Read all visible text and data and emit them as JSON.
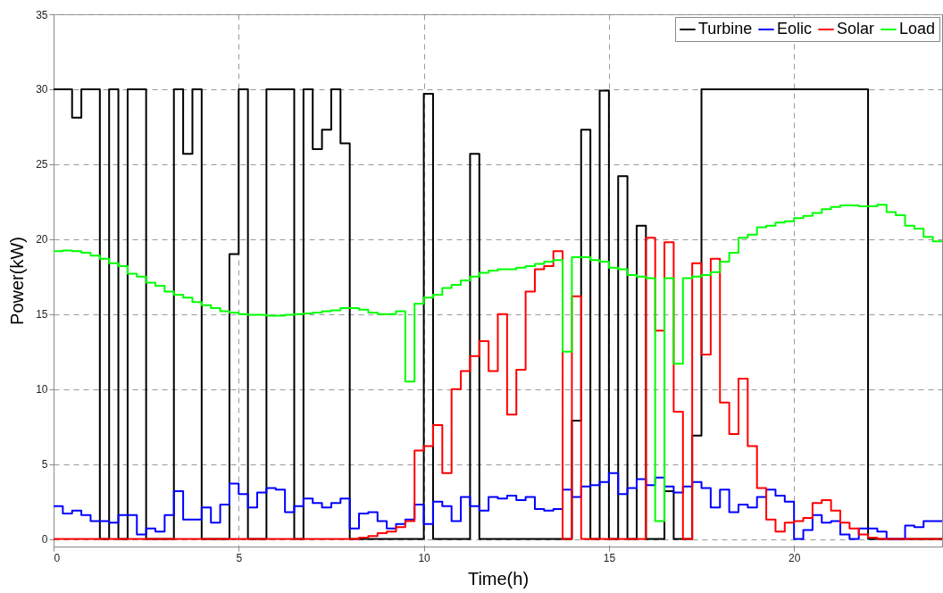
{
  "chart_data": {
    "type": "step",
    "xlabel": "Time(h)",
    "ylabel": "Power(kW)",
    "x": [
      0,
      0.25,
      0.5,
      0.75,
      1,
      1.25,
      1.5,
      1.75,
      2,
      2.25,
      2.5,
      2.75,
      3,
      3.25,
      3.5,
      3.75,
      4,
      4.25,
      4.5,
      4.75,
      5,
      5.25,
      5.5,
      5.75,
      6,
      6.25,
      6.5,
      6.75,
      7,
      7.25,
      7.5,
      7.75,
      8,
      8.25,
      8.5,
      8.75,
      9,
      9.25,
      9.5,
      9.75,
      10,
      10.25,
      10.5,
      10.75,
      11,
      11.25,
      11.5,
      11.75,
      12,
      12.25,
      12.5,
      12.75,
      13,
      13.25,
      13.5,
      13.75,
      14,
      14.25,
      14.5,
      14.75,
      15,
      15.25,
      15.5,
      15.75,
      16,
      16.25,
      16.5,
      16.75,
      17,
      17.25,
      17.5,
      17.75,
      18,
      18.25,
      18.5,
      18.75,
      19,
      19.25,
      19.5,
      19.75,
      20,
      20.25,
      20.5,
      20.75,
      21,
      21.25,
      21.5,
      21.75,
      22,
      22.25,
      22.5,
      22.75,
      23,
      23.25,
      23.5,
      23.75,
      24
    ],
    "series": [
      {
        "name": "Turbine",
        "color": "#000000",
        "values": [
          30,
          30,
          28.1,
          30,
          30,
          0,
          30,
          0,
          30,
          30,
          0,
          0,
          0,
          30,
          25.7,
          30,
          0,
          0,
          0,
          19,
          30,
          0,
          0,
          30,
          30,
          30,
          0,
          30,
          26,
          27.3,
          30,
          26.4,
          0,
          0,
          0,
          0,
          0,
          0,
          0,
          0,
          29.7,
          0,
          0,
          0,
          0,
          25.7,
          0,
          0,
          0,
          0,
          0,
          0,
          0,
          0,
          0,
          0,
          7.9,
          27.3,
          0,
          29.9,
          0,
          24.2,
          0,
          20.9,
          0,
          0,
          3.2,
          0,
          0,
          6.9,
          30,
          30,
          30,
          30,
          30,
          30,
          30,
          30,
          30,
          30,
          30,
          30,
          30,
          30,
          30,
          30,
          30,
          30,
          0,
          0,
          0,
          0,
          0,
          0,
          0,
          0,
          0
        ]
      },
      {
        "name": "Eolic",
        "color": "#0000ff",
        "values": [
          2.2,
          1.7,
          1.9,
          1.6,
          1.2,
          1.2,
          1.1,
          1.6,
          1.6,
          0.3,
          0.7,
          0.5,
          1.6,
          3.2,
          1.3,
          1.3,
          2.1,
          1.1,
          2.3,
          3.7,
          3.0,
          2.1,
          3.1,
          3.4,
          3.3,
          1.8,
          2.2,
          2.7,
          2.4,
          2.1,
          2.4,
          2.7,
          0.7,
          1.7,
          1.8,
          1.2,
          0.7,
          1.0,
          1.3,
          2.3,
          1.0,
          2.5,
          2.2,
          1.2,
          2.8,
          2.2,
          1.9,
          2.8,
          2.7,
          2.9,
          2.6,
          2.8,
          2.0,
          1.9,
          2.0,
          3.3,
          2.8,
          3.5,
          3.6,
          3.8,
          4.4,
          3.0,
          3.4,
          4.0,
          3.6,
          4.1,
          3.5,
          3.1,
          3.5,
          3.8,
          3.4,
          2.1,
          3.3,
          1.8,
          2.3,
          2.1,
          2.8,
          3.3,
          2.9,
          2.5,
          0,
          0.6,
          1.6,
          1.1,
          1.2,
          0.3,
          0,
          0.7,
          0.7,
          0.5,
          0,
          0,
          0.9,
          0.8,
          1.2,
          1.2,
          1.2
        ]
      },
      {
        "name": "Solar",
        "color": "#ff0000",
        "values": [
          0,
          0,
          0,
          0,
          0,
          0,
          0,
          0,
          0,
          0,
          0,
          0,
          0,
          0,
          0,
          0,
          0,
          0,
          0,
          0,
          0,
          0,
          0,
          0,
          0,
          0,
          0,
          0,
          0,
          0,
          0,
          0,
          0,
          0.1,
          0.2,
          0.4,
          0.5,
          0.8,
          1.2,
          5.9,
          6.2,
          7.6,
          4.4,
          10,
          11.2,
          12.2,
          13.2,
          11.2,
          15.0,
          8.3,
          11.3,
          16.5,
          18.0,
          18.2,
          19.2,
          0,
          16.2,
          0,
          0,
          0,
          0,
          0,
          0,
          0,
          20.1,
          13.9,
          19.8,
          8.5,
          0,
          18.4,
          12.3,
          18.7,
          9.1,
          7.0,
          10.7,
          6.2,
          3.4,
          1.3,
          0.5,
          1.1,
          1.2,
          1.4,
          2.4,
          2.6,
          1.9,
          1.1,
          0.7,
          0.3,
          0.1,
          0,
          0,
          0,
          0,
          0,
          0,
          0,
          0
        ]
      },
      {
        "name": "Load",
        "color": "#00ff00",
        "values": [
          19.2,
          19.25,
          19.2,
          19.1,
          18.9,
          18.7,
          18.4,
          18.2,
          17.7,
          17.5,
          17.1,
          16.9,
          16.5,
          16.3,
          16.1,
          15.8,
          15.6,
          15.4,
          15.2,
          15.1,
          15.0,
          14.95,
          14.95,
          14.9,
          14.9,
          14.95,
          15.0,
          15.05,
          15.1,
          15.2,
          15.25,
          15.4,
          15.4,
          15.3,
          15.1,
          15.0,
          15.0,
          15.2,
          10.5,
          15.7,
          16.1,
          16.3,
          16.75,
          16.95,
          17.25,
          17.5,
          17.75,
          17.9,
          18.0,
          18.0,
          18.1,
          18.2,
          18.35,
          18.5,
          18.6,
          12.5,
          18.8,
          18.8,
          18.6,
          18.5,
          18.1,
          18.0,
          17.6,
          17.5,
          17.4,
          1.2,
          17.4,
          11.7,
          17.4,
          17.5,
          17.6,
          17.8,
          18.5,
          19.1,
          20.1,
          20.3,
          20.8,
          20.9,
          21.1,
          21.2,
          21.4,
          21.55,
          21.75,
          22.0,
          22.15,
          22.25,
          22.25,
          22.2,
          22.2,
          22.3,
          21.8,
          21.6,
          20.9,
          20.7,
          20.15,
          19.85,
          19.85
        ]
      }
    ],
    "xlim": [
      0,
      24
    ],
    "xticks": [
      0,
      5,
      10,
      15,
      20
    ],
    "ylim": [
      -0.5,
      35
    ],
    "yticks": [
      0,
      5,
      10,
      15,
      20,
      25,
      30,
      35
    ],
    "grid": true,
    "legend": "top right",
    "marker": "none",
    "line_style": "solid"
  }
}
